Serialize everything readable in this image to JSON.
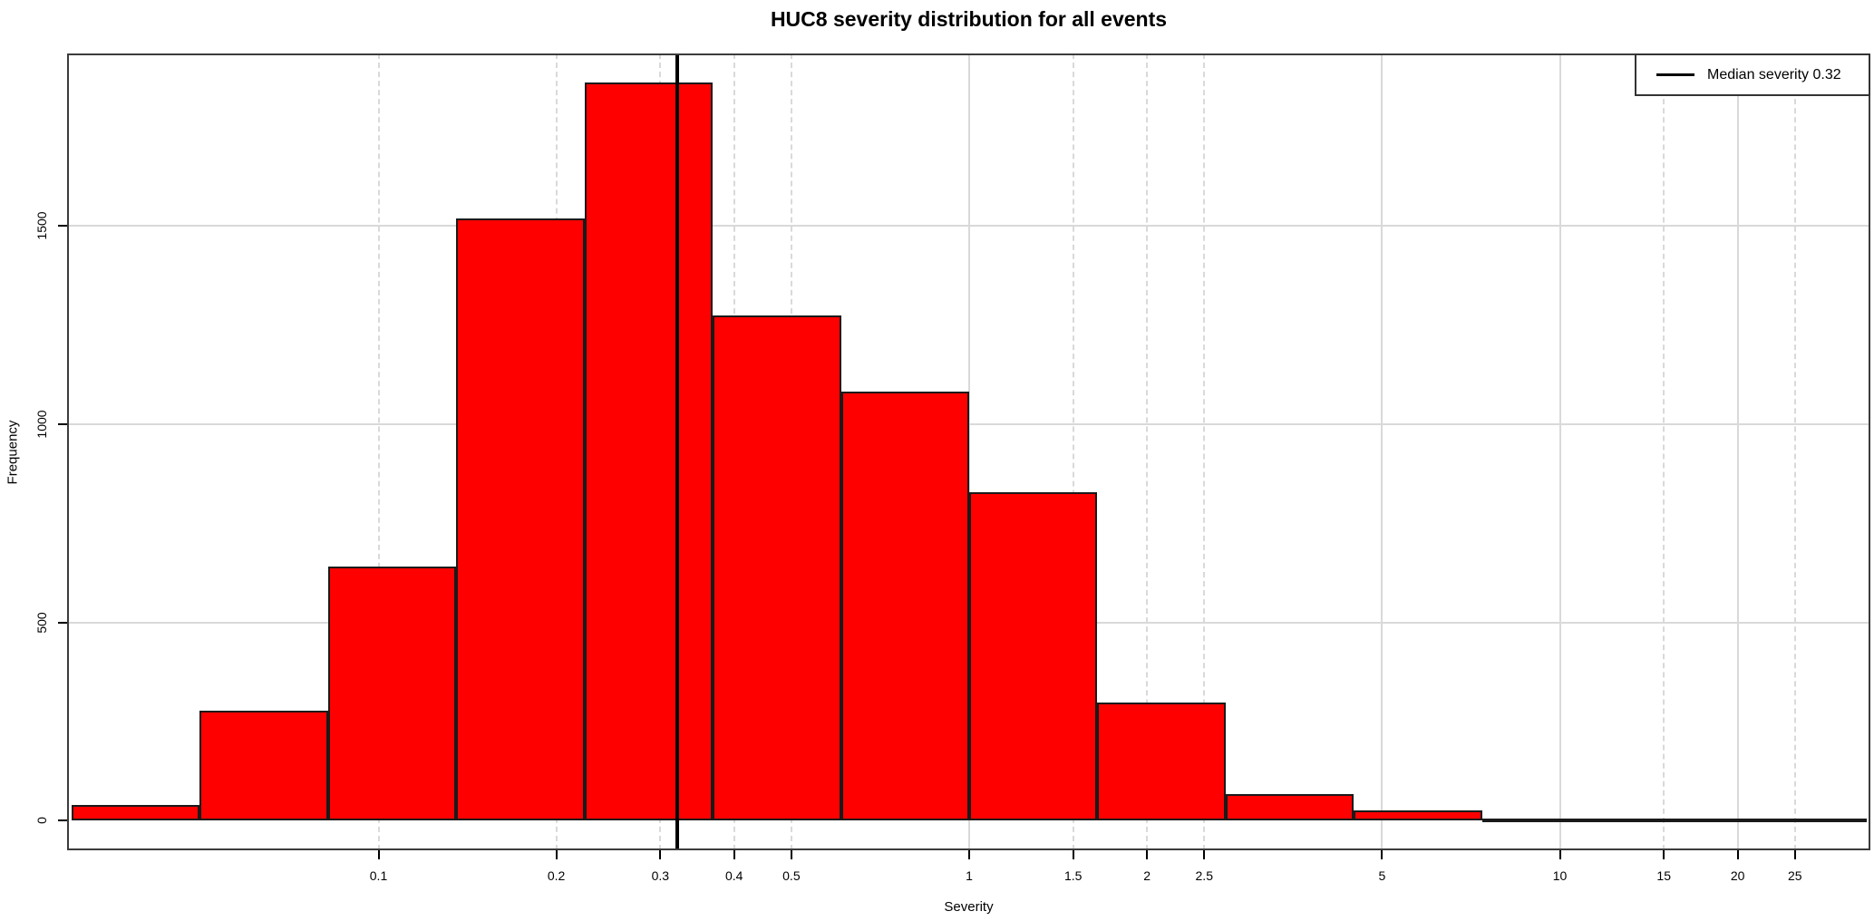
{
  "title": "HUC8 severity distribution for all events",
  "legend": {
    "label": "Median severity 0.32"
  },
  "chart_data": {
    "type": "bar",
    "subtype": "histogram",
    "title": "HUC8 severity distribution for all events",
    "xlabel": "Severity",
    "ylabel": "Frequency",
    "x_scale": "log",
    "grid": "on",
    "legend_position": "top-right",
    "bin_edges": [
      0.0302,
      0.0498,
      0.0821,
      0.1353,
      0.2231,
      0.3679,
      0.6065,
      1.0,
      1.6487,
      2.7183,
      4.4817,
      7.389,
      12.182,
      20.086,
      33.115
    ],
    "counts": [
      40,
      277,
      640,
      1519,
      1862,
      1274,
      1083,
      829,
      298,
      67,
      25,
      6,
      3,
      2
    ],
    "median_value": 0.32,
    "median_label": "Median severity 0.32",
    "x_ticks": [
      {
        "v": 0.1,
        "label": "0.1",
        "style": "dashed"
      },
      {
        "v": 0.2,
        "label": "0.2",
        "style": "dashed"
      },
      {
        "v": 0.3,
        "label": "0.3",
        "style": "dashed"
      },
      {
        "v": 0.4,
        "label": "0.4",
        "style": "dashed"
      },
      {
        "v": 0.5,
        "label": "0.5",
        "style": "dashed"
      },
      {
        "v": 1,
        "label": "1",
        "style": "solid"
      },
      {
        "v": 1.5,
        "label": "1.5",
        "style": "dashed"
      },
      {
        "v": 2,
        "label": "2",
        "style": "dashed"
      },
      {
        "v": 2.5,
        "label": "2.5",
        "style": "dashed"
      },
      {
        "v": 5,
        "label": "5",
        "style": "solid"
      },
      {
        "v": 10,
        "label": "10",
        "style": "solid"
      },
      {
        "v": 15,
        "label": "15",
        "style": "dashed"
      },
      {
        "v": 20,
        "label": "20",
        "style": "solid"
      },
      {
        "v": 25,
        "label": "25",
        "style": "dashed"
      }
    ],
    "y_ticks": [
      0,
      500,
      1000,
      1500
    ],
    "xlim": [
      0.0297,
      33.55
    ],
    "ylim": [
      -74.5,
      1934.6
    ],
    "colors": {
      "bar_fill": "#FF0000",
      "bar_border": "#1a1a1a",
      "grid": "#d9d9d9",
      "median_line": "#000000",
      "axis": "#3c3c3c",
      "text": "#000000"
    }
  }
}
